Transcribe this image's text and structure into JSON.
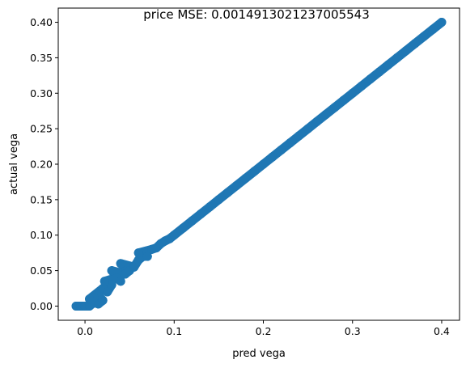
{
  "chart_data": {
    "type": "scatter",
    "title": "price MSE: 0.0014913021237005543",
    "xlabel": "pred vega",
    "ylabel": "actual vega",
    "xlim": [
      -0.03,
      0.42
    ],
    "ylim": [
      -0.02,
      0.42
    ],
    "xticks": [
      0.0,
      0.1,
      0.2,
      0.3,
      0.4
    ],
    "xtick_labels": [
      "0.0",
      "0.1",
      "0.2",
      "0.3",
      "0.4"
    ],
    "yticks": [
      0.0,
      0.05,
      0.1,
      0.15,
      0.2,
      0.25,
      0.3,
      0.35,
      0.4
    ],
    "ytick_labels": [
      "0.00",
      "0.05",
      "0.10",
      "0.15",
      "0.20",
      "0.25",
      "0.30",
      "0.35",
      "0.40"
    ],
    "grid": false,
    "legend": "none",
    "marker_color": "#1f77b4",
    "series": [
      {
        "x": [
          -0.01,
          -0.005,
          0.0,
          0.005,
          0.01,
          0.015,
          0.02,
          0.015,
          0.01,
          0.005,
          0.02,
          0.025,
          0.03,
          0.022,
          0.035,
          0.04,
          0.03,
          0.045,
          0.05,
          0.04,
          0.055,
          0.06,
          0.065,
          0.07,
          0.06,
          0.075,
          0.08,
          0.085,
          0.09,
          0.095,
          0.1,
          0.11,
          0.12,
          0.13,
          0.14,
          0.15,
          0.16,
          0.17,
          0.18,
          0.19,
          0.2,
          0.21,
          0.22,
          0.23,
          0.24,
          0.25,
          0.26,
          0.27,
          0.28,
          0.29,
          0.3,
          0.31,
          0.32,
          0.33,
          0.34,
          0.35,
          0.36,
          0.37,
          0.38,
          0.39,
          0.4
        ],
        "y": [
          0.0,
          0.0,
          0.0,
          0.0,
          0.005,
          0.003,
          0.008,
          0.015,
          0.012,
          0.01,
          0.025,
          0.02,
          0.03,
          0.035,
          0.04,
          0.035,
          0.05,
          0.045,
          0.05,
          0.06,
          0.055,
          0.065,
          0.07,
          0.07,
          0.075,
          0.08,
          0.082,
          0.088,
          0.092,
          0.095,
          0.1,
          0.11,
          0.12,
          0.13,
          0.14,
          0.15,
          0.16,
          0.17,
          0.18,
          0.19,
          0.2,
          0.21,
          0.22,
          0.23,
          0.24,
          0.25,
          0.26,
          0.27,
          0.28,
          0.29,
          0.3,
          0.31,
          0.32,
          0.33,
          0.34,
          0.35,
          0.36,
          0.37,
          0.38,
          0.39,
          0.4
        ]
      }
    ]
  }
}
